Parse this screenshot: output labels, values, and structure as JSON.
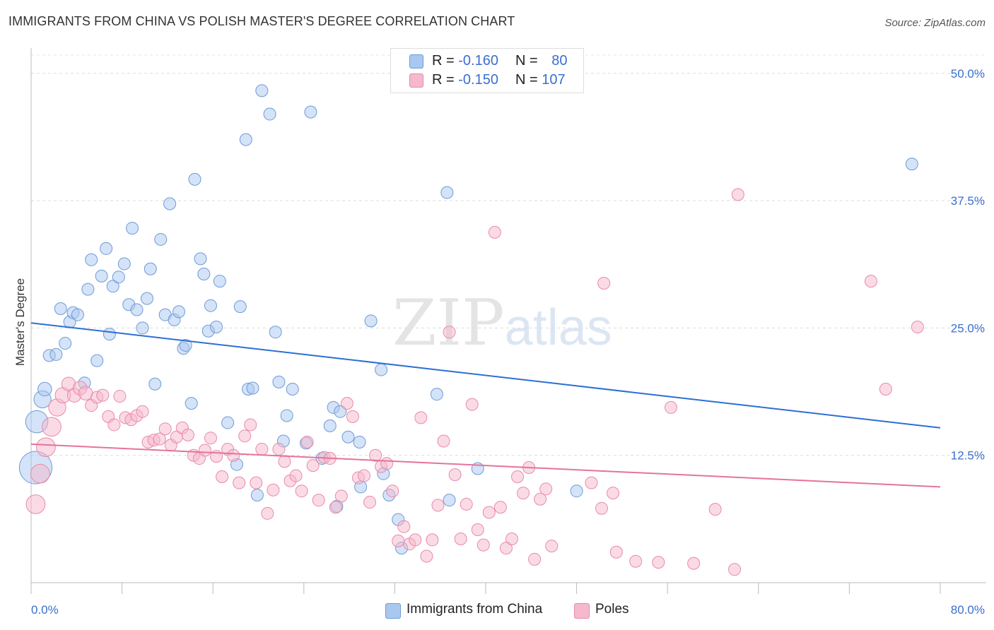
{
  "header": {
    "title": "IMMIGRANTS FROM CHINA VS POLISH MASTER'S DEGREE CORRELATION CHART",
    "source": "Source: ZipAtlas.com"
  },
  "watermark": {
    "zip": "ZIP",
    "atlas": "atlas"
  },
  "legend": {
    "rows": [
      {
        "r_label": "R =",
        "r_value": "-0.160",
        "n_label": "N =",
        "n_value": "80",
        "color": "#a9c8f0"
      },
      {
        "r_label": "R =",
        "r_value": "-0.150",
        "n_label": "N =",
        "n_value": "107",
        "color": "#f6b8cc"
      }
    ]
  },
  "bottom_legend": [
    {
      "label": "Immigrants from China",
      "color": "#a9c8f0"
    },
    {
      "label": "Poles",
      "color": "#f6b8cc"
    }
  ],
  "colors": {
    "blue_fill": "#a9c8f0",
    "blue_stroke": "#6d9bd8",
    "blue_line": "#2c6fd4",
    "pink_fill": "#f6b8cc",
    "pink_stroke": "#e88aa8",
    "pink_line": "#e5739b",
    "tick_label": "#3a6fd0"
  },
  "chart_data": {
    "type": "scatter",
    "title": "IMMIGRANTS FROM CHINA VS POLISH MASTER'S DEGREE CORRELATION CHART",
    "xlabel": "",
    "ylabel": "Master's Degree",
    "xlim": [
      0,
      80
    ],
    "ylim": [
      0,
      52
    ],
    "x_tick_labels": [
      "0.0%",
      "80.0%"
    ],
    "y_ticks": [
      12.5,
      25.0,
      37.5,
      50.0
    ],
    "y_tick_labels": [
      "12.5%",
      "25.0%",
      "37.5%",
      "50.0%"
    ],
    "grid": true,
    "legend_position": "top-center",
    "series": [
      {
        "name": "Immigrants from China",
        "trend": {
          "x": [
            0,
            80
          ],
          "y": [
            25.5,
            15.2
          ]
        },
        "points": [
          [
            0.4,
            11.3,
            1.9
          ],
          [
            0.5,
            15.8,
            1.3
          ],
          [
            1.0,
            18.0,
            1.0
          ],
          [
            1.2,
            19.0,
            0.8
          ],
          [
            1.6,
            22.3,
            0.7
          ],
          [
            2.2,
            22.4,
            0.7
          ],
          [
            2.6,
            26.9,
            0.7
          ],
          [
            3.0,
            23.5,
            0.7
          ],
          [
            3.4,
            25.6,
            0.7
          ],
          [
            3.7,
            26.5,
            0.7
          ],
          [
            4.1,
            26.3,
            0.7
          ],
          [
            4.7,
            19.6,
            0.7
          ],
          [
            5.0,
            28.8,
            0.7
          ],
          [
            5.3,
            31.7,
            0.7
          ],
          [
            5.8,
            21.8,
            0.7
          ],
          [
            6.2,
            30.1,
            0.7
          ],
          [
            6.6,
            32.8,
            0.7
          ],
          [
            6.9,
            24.4,
            0.7
          ],
          [
            7.2,
            29.1,
            0.7
          ],
          [
            7.7,
            30.0,
            0.7
          ],
          [
            8.2,
            31.3,
            0.7
          ],
          [
            8.6,
            27.3,
            0.7
          ],
          [
            8.9,
            34.8,
            0.7
          ],
          [
            9.3,
            26.8,
            0.7
          ],
          [
            9.8,
            25.0,
            0.7
          ],
          [
            10.2,
            27.9,
            0.7
          ],
          [
            10.5,
            30.8,
            0.7
          ],
          [
            10.9,
            19.5,
            0.7
          ],
          [
            11.4,
            33.7,
            0.7
          ],
          [
            11.8,
            26.3,
            0.7
          ],
          [
            12.2,
            37.2,
            0.7
          ],
          [
            12.6,
            25.8,
            0.7
          ],
          [
            13.0,
            26.6,
            0.7
          ],
          [
            13.4,
            23.0,
            0.7
          ],
          [
            13.6,
            23.3,
            0.7
          ],
          [
            14.1,
            17.6,
            0.7
          ],
          [
            14.4,
            39.6,
            0.7
          ],
          [
            14.9,
            31.8,
            0.7
          ],
          [
            15.2,
            30.3,
            0.7
          ],
          [
            15.6,
            24.7,
            0.7
          ],
          [
            15.8,
            27.2,
            0.7
          ],
          [
            16.3,
            25.1,
            0.7
          ],
          [
            16.6,
            29.6,
            0.7
          ],
          [
            17.3,
            15.7,
            0.7
          ],
          [
            18.1,
            11.6,
            0.7
          ],
          [
            18.4,
            27.1,
            0.7
          ],
          [
            18.9,
            43.5,
            0.7
          ],
          [
            19.1,
            19.0,
            0.7
          ],
          [
            19.5,
            19.1,
            0.7
          ],
          [
            19.9,
            8.6,
            0.7
          ],
          [
            20.3,
            48.3,
            0.7
          ],
          [
            21.0,
            46.0,
            0.7
          ],
          [
            21.5,
            24.6,
            0.7
          ],
          [
            21.8,
            19.7,
            0.7
          ],
          [
            22.2,
            13.9,
            0.7
          ],
          [
            22.5,
            16.4,
            0.7
          ],
          [
            23.0,
            19.0,
            0.7
          ],
          [
            24.2,
            13.7,
            0.7
          ],
          [
            24.6,
            46.2,
            0.7
          ],
          [
            25.6,
            12.2,
            0.7
          ],
          [
            26.3,
            15.4,
            0.7
          ],
          [
            26.6,
            17.2,
            0.7
          ],
          [
            26.9,
            7.5,
            0.7
          ],
          [
            27.2,
            16.8,
            0.7
          ],
          [
            27.9,
            14.3,
            0.7
          ],
          [
            28.9,
            13.8,
            0.7
          ],
          [
            29.0,
            9.4,
            0.7
          ],
          [
            29.9,
            25.7,
            0.7
          ],
          [
            30.8,
            20.9,
            0.7
          ],
          [
            31.0,
            10.7,
            0.7
          ],
          [
            31.5,
            8.6,
            0.7
          ],
          [
            32.3,
            6.2,
            0.7
          ],
          [
            32.6,
            3.4,
            0.7
          ],
          [
            35.7,
            18.5,
            0.7
          ],
          [
            36.6,
            38.3,
            0.7
          ],
          [
            36.8,
            8.1,
            0.7
          ],
          [
            39.3,
            11.2,
            0.7
          ],
          [
            48.0,
            9.0,
            0.7
          ],
          [
            77.5,
            41.1,
            0.7
          ]
        ]
      },
      {
        "name": "Poles",
        "trend": {
          "x": [
            0,
            80
          ],
          "y": [
            13.6,
            9.4
          ]
        },
        "points": [
          [
            0.4,
            7.7,
            1.1
          ],
          [
            0.8,
            10.7,
            1.1
          ],
          [
            1.3,
            13.3,
            1.1
          ],
          [
            1.8,
            15.3,
            1.1
          ],
          [
            2.3,
            17.2,
            1.0
          ],
          [
            2.8,
            18.4,
            0.9
          ],
          [
            3.3,
            19.5,
            0.8
          ],
          [
            3.8,
            18.4,
            0.8
          ],
          [
            4.3,
            19.1,
            0.8
          ],
          [
            4.8,
            18.6,
            0.8
          ],
          [
            5.3,
            17.4,
            0.7
          ],
          [
            5.8,
            18.2,
            0.7
          ],
          [
            6.3,
            18.4,
            0.7
          ],
          [
            6.8,
            16.3,
            0.7
          ],
          [
            7.3,
            15.5,
            0.7
          ],
          [
            7.8,
            18.3,
            0.7
          ],
          [
            8.3,
            16.2,
            0.7
          ],
          [
            8.8,
            16.0,
            0.7
          ],
          [
            9.3,
            16.4,
            0.7
          ],
          [
            9.8,
            16.8,
            0.7
          ],
          [
            10.3,
            13.8,
            0.7
          ],
          [
            10.8,
            14.0,
            0.7
          ],
          [
            11.3,
            14.1,
            0.7
          ],
          [
            11.8,
            15.1,
            0.7
          ],
          [
            12.3,
            13.5,
            0.7
          ],
          [
            12.8,
            14.3,
            0.7
          ],
          [
            13.3,
            15.2,
            0.7
          ],
          [
            13.8,
            14.5,
            0.7
          ],
          [
            14.3,
            12.5,
            0.7
          ],
          [
            14.8,
            12.2,
            0.7
          ],
          [
            15.3,
            13.0,
            0.7
          ],
          [
            15.8,
            14.2,
            0.7
          ],
          [
            16.3,
            12.4,
            0.7
          ],
          [
            16.8,
            10.4,
            0.7
          ],
          [
            17.3,
            13.1,
            0.7
          ],
          [
            17.8,
            12.5,
            0.7
          ],
          [
            18.3,
            9.8,
            0.7
          ],
          [
            18.8,
            14.4,
            0.7
          ],
          [
            19.3,
            15.5,
            0.7
          ],
          [
            19.8,
            9.8,
            0.7
          ],
          [
            20.3,
            13.1,
            0.7
          ],
          [
            20.8,
            6.8,
            0.7
          ],
          [
            21.3,
            9.1,
            0.7
          ],
          [
            21.8,
            13.1,
            0.7
          ],
          [
            22.3,
            11.9,
            0.7
          ],
          [
            22.8,
            10.0,
            0.7
          ],
          [
            23.3,
            10.5,
            0.7
          ],
          [
            23.8,
            9.0,
            0.7
          ],
          [
            24.3,
            13.8,
            0.7
          ],
          [
            24.8,
            11.5,
            0.7
          ],
          [
            25.3,
            8.1,
            0.7
          ],
          [
            25.8,
            12.3,
            0.7
          ],
          [
            26.3,
            12.2,
            0.7
          ],
          [
            26.8,
            7.4,
            0.7
          ],
          [
            27.3,
            8.5,
            0.7
          ],
          [
            27.8,
            17.6,
            0.7
          ],
          [
            28.3,
            16.3,
            0.7
          ],
          [
            28.8,
            10.3,
            0.7
          ],
          [
            29.3,
            10.5,
            0.7
          ],
          [
            29.8,
            7.9,
            0.7
          ],
          [
            30.3,
            12.5,
            0.7
          ],
          [
            30.8,
            11.4,
            0.7
          ],
          [
            31.3,
            11.7,
            0.7
          ],
          [
            31.8,
            9.0,
            0.7
          ],
          [
            32.3,
            4.1,
            0.7
          ],
          [
            32.8,
            5.5,
            0.7
          ],
          [
            33.3,
            3.8,
            0.7
          ],
          [
            33.8,
            4.2,
            0.7
          ],
          [
            34.3,
            16.2,
            0.7
          ],
          [
            34.8,
            2.6,
            0.7
          ],
          [
            35.3,
            4.2,
            0.7
          ],
          [
            35.8,
            7.6,
            0.7
          ],
          [
            36.3,
            13.9,
            0.7
          ],
          [
            36.8,
            24.6,
            0.7
          ],
          [
            37.3,
            10.6,
            0.7
          ],
          [
            37.8,
            4.3,
            0.7
          ],
          [
            38.3,
            7.7,
            0.7
          ],
          [
            38.8,
            17.5,
            0.7
          ],
          [
            39.3,
            5.2,
            0.7
          ],
          [
            39.8,
            3.7,
            0.7
          ],
          [
            40.3,
            6.9,
            0.7
          ],
          [
            40.8,
            34.4,
            0.7
          ],
          [
            41.3,
            7.4,
            0.7
          ],
          [
            41.8,
            3.4,
            0.7
          ],
          [
            42.3,
            4.3,
            0.7
          ],
          [
            42.8,
            10.4,
            0.7
          ],
          [
            43.3,
            8.8,
            0.7
          ],
          [
            43.8,
            11.3,
            0.7
          ],
          [
            44.3,
            2.3,
            0.7
          ],
          [
            44.8,
            8.2,
            0.7
          ],
          [
            45.3,
            9.2,
            0.7
          ],
          [
            45.8,
            3.6,
            0.7
          ],
          [
            49.3,
            9.8,
            0.7
          ],
          [
            50.2,
            7.3,
            0.7
          ],
          [
            50.4,
            29.4,
            0.7
          ],
          [
            51.2,
            8.8,
            0.7
          ],
          [
            51.5,
            3.0,
            0.7
          ],
          [
            53.2,
            2.1,
            0.7
          ],
          [
            55.2,
            2.0,
            0.7
          ],
          [
            56.3,
            17.2,
            0.7
          ],
          [
            58.3,
            1.9,
            0.7
          ],
          [
            60.2,
            7.2,
            0.7
          ],
          [
            61.9,
            1.3,
            0.7
          ],
          [
            62.2,
            38.1,
            0.7
          ],
          [
            73.9,
            29.6,
            0.7
          ],
          [
            75.2,
            19.0,
            0.7
          ],
          [
            78.0,
            25.1,
            0.7
          ]
        ]
      }
    ]
  }
}
